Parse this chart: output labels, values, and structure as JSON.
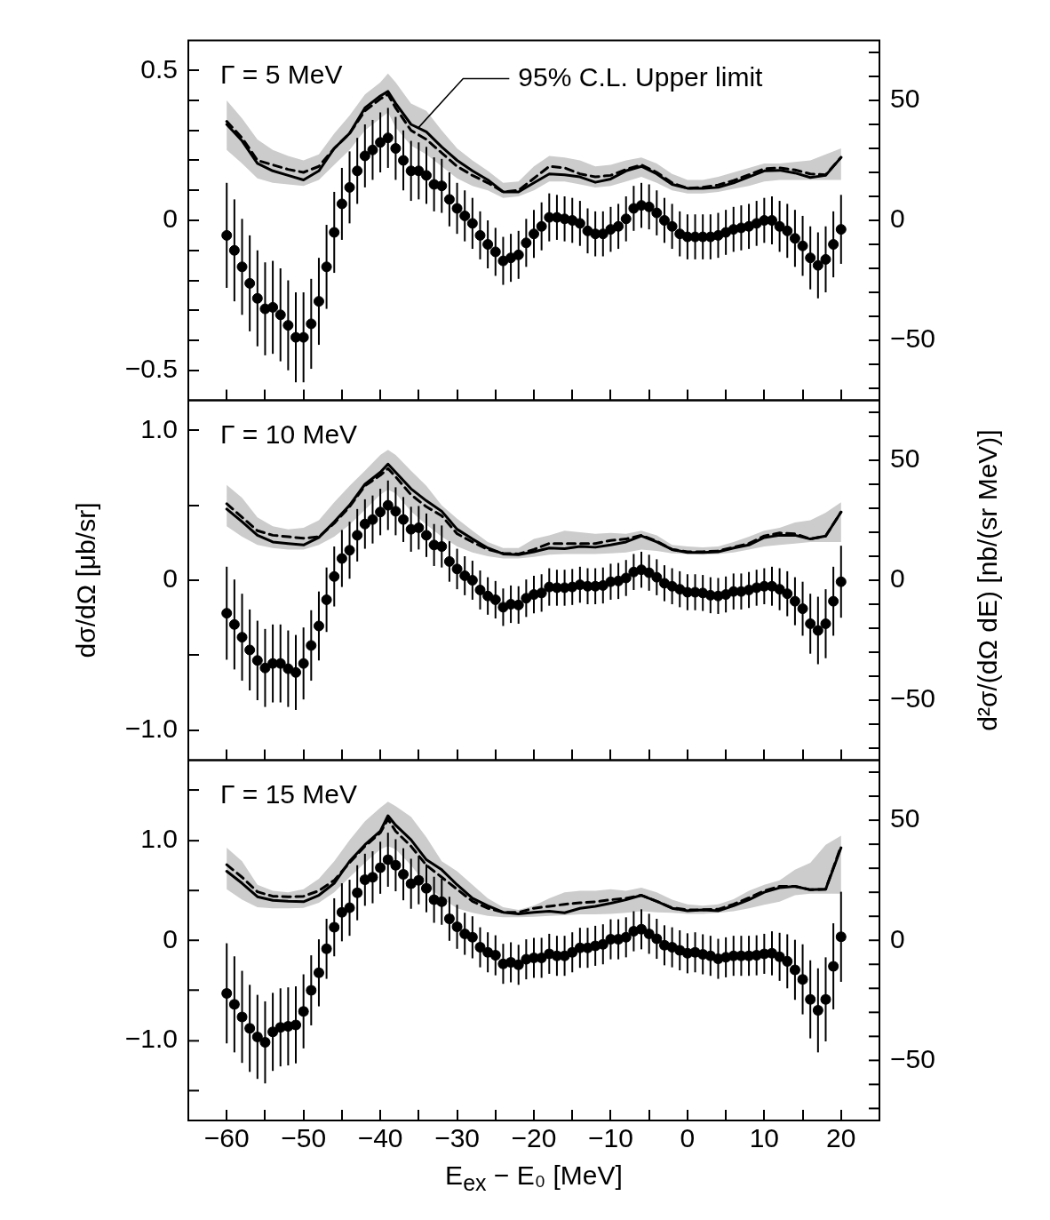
{
  "chart_data": [
    {
      "type": "scatter",
      "annotations": [
        "Γ = 5 MeV",
        {
          "text": "95% C.L. Upper limit",
          "x": -35,
          "y": 0.31
        }
      ],
      "x": [
        -60,
        -59,
        -58,
        -57,
        -56,
        -55,
        -54,
        -53,
        -52,
        -51,
        -50,
        -49,
        -48,
        -47,
        -46,
        -45,
        -44,
        -43,
        -42,
        -41,
        -40,
        -39,
        -38,
        -37,
        -36,
        -35,
        -34,
        -33,
        -32,
        -31,
        -30,
        -29,
        -28,
        -27,
        -26,
        -25,
        -24,
        -23,
        -22,
        -21,
        -20,
        -19,
        -18,
        -17,
        -16,
        -15,
        -14,
        -13,
        -12,
        -11,
        -10,
        -9,
        -8,
        -7,
        -6,
        -5,
        -4,
        -3,
        -2,
        -1,
        0,
        1,
        2,
        3,
        4,
        5,
        6,
        7,
        8,
        9,
        10,
        11,
        12,
        13,
        14,
        15,
        16,
        17,
        18,
        19,
        20
      ],
      "xlim": [
        -65,
        25
      ],
      "xticks": [
        {
          "value": -60,
          "label": null
        },
        {
          "value": -55,
          "label": null
        },
        {
          "value": -50,
          "label": null
        },
        {
          "value": -45,
          "label": null
        },
        {
          "value": -40,
          "label": null
        },
        {
          "value": -35,
          "label": null
        },
        {
          "value": -30,
          "label": null
        },
        {
          "value": -25,
          "label": null
        },
        {
          "value": -20,
          "label": null
        },
        {
          "value": -15,
          "label": null
        },
        {
          "value": -10,
          "label": null
        },
        {
          "value": -5,
          "label": null
        },
        {
          "value": 0,
          "label": null
        },
        {
          "value": 5,
          "label": null
        },
        {
          "value": 10,
          "label": null
        },
        {
          "value": 15,
          "label": null
        },
        {
          "value": 20,
          "label": null
        }
      ],
      "ylim": [
        -0.6,
        0.6
      ],
      "yticks": [
        {
          "value": -0.5,
          "label": "−0.5"
        },
        {
          "value": -0.4,
          "label": null
        },
        {
          "value": -0.3,
          "label": null
        },
        {
          "value": -0.2,
          "label": null
        },
        {
          "value": -0.1,
          "label": null
        },
        {
          "value": 0,
          "label": "0"
        },
        {
          "value": 0.1,
          "label": null
        },
        {
          "value": 0.2,
          "label": null
        },
        {
          "value": 0.3,
          "label": null
        },
        {
          "value": 0.4,
          "label": null
        },
        {
          "value": 0.5,
          "label": "0.5"
        }
      ],
      "y2lim": [
        -75,
        75
      ],
      "y2ticks": [
        {
          "value": -70,
          "label": null
        },
        {
          "value": -60,
          "label": null
        },
        {
          "value": -50,
          "label": "−50"
        },
        {
          "value": -40,
          "label": null
        },
        {
          "value": -30,
          "label": null
        },
        {
          "value": -20,
          "label": null
        },
        {
          "value": -10,
          "label": null
        },
        {
          "value": 0,
          "label": "0"
        },
        {
          "value": 10,
          "label": null
        },
        {
          "value": 20,
          "label": null
        },
        {
          "value": 30,
          "label": null
        },
        {
          "value": 40,
          "label": null
        },
        {
          "value": 50,
          "label": "50"
        },
        {
          "value": 60,
          "label": null
        },
        {
          "value": 70,
          "label": null
        }
      ],
      "tick_labels": "y",
      "series": [
        {
          "type": "line",
          "color": "#000000",
          "line_style": "dashed",
          "marker": "none",
          "x": [
            -60,
            -58,
            -56,
            -54,
            -52,
            -50,
            -48,
            -46,
            -44,
            -42,
            -40,
            -39,
            -38,
            -36,
            -34,
            -32,
            -30,
            -28,
            -26,
            -24,
            -22,
            -20,
            -18,
            -16,
            -14,
            -12,
            -10,
            -8,
            -6,
            -4,
            -2,
            0,
            2,
            4,
            6,
            8,
            10,
            12,
            14,
            16,
            18,
            20
          ],
          "values": [
            0.33,
            0.275,
            0.2,
            0.185,
            0.17,
            0.16,
            0.18,
            0.24,
            0.29,
            0.365,
            0.405,
            0.42,
            0.375,
            0.3,
            0.27,
            0.225,
            0.18,
            0.15,
            0.125,
            0.095,
            0.1,
            0.14,
            0.18,
            0.175,
            0.155,
            0.145,
            0.15,
            0.17,
            0.185,
            0.16,
            0.125,
            0.107,
            0.11,
            0.118,
            0.133,
            0.152,
            0.172,
            0.175,
            0.168,
            0.155,
            0.152,
            0.21
          ],
          "upper": [
            0.4,
            0.34,
            0.27,
            0.235,
            0.215,
            0.2,
            0.22,
            0.29,
            0.35,
            0.42,
            0.46,
            0.49,
            0.46,
            0.39,
            0.365,
            0.3,
            0.24,
            0.2,
            0.165,
            0.125,
            0.13,
            0.18,
            0.215,
            0.21,
            0.2,
            0.18,
            0.185,
            0.2,
            0.21,
            0.19,
            0.155,
            0.135,
            0.135,
            0.145,
            0.16,
            0.175,
            0.19,
            0.19,
            0.195,
            0.2,
            0.22,
            0.24
          ],
          "lower": [
            0.235,
            0.19,
            0.14,
            0.125,
            0.12,
            0.115,
            0.135,
            0.185,
            0.235,
            0.3,
            0.34,
            0.36,
            0.31,
            0.25,
            0.22,
            0.18,
            0.14,
            0.115,
            0.1,
            0.075,
            0.08,
            0.1,
            0.13,
            0.13,
            0.12,
            0.11,
            0.115,
            0.13,
            0.145,
            0.125,
            0.1,
            0.09,
            0.09,
            0.095,
            0.105,
            0.115,
            0.13,
            0.135,
            0.135,
            0.135,
            0.135,
            0.135
          ]
        },
        {
          "type": "line",
          "color": "#000000",
          "line_style": "solid",
          "marker": "none",
          "x": [
            -60,
            -58,
            -56,
            -54,
            -52,
            -50,
            -48,
            -46,
            -44,
            -42,
            -40,
            -39,
            -38,
            -36,
            -34,
            -32,
            -30,
            -28,
            -26,
            -24,
            -22,
            -20,
            -18,
            -16,
            -14,
            -12,
            -10,
            -8,
            -6,
            -4,
            -2,
            0,
            2,
            4,
            6,
            8,
            10,
            12,
            14,
            16,
            18,
            20
          ],
          "values": [
            0.32,
            0.265,
            0.19,
            0.165,
            0.15,
            0.135,
            0.165,
            0.24,
            0.29,
            0.375,
            0.415,
            0.43,
            0.39,
            0.32,
            0.295,
            0.245,
            0.2,
            0.165,
            0.135,
            0.095,
            0.095,
            0.125,
            0.155,
            0.152,
            0.145,
            0.127,
            0.138,
            0.165,
            0.18,
            0.155,
            0.12,
            0.107,
            0.107,
            0.11,
            0.125,
            0.145,
            0.165,
            0.167,
            0.158,
            0.143,
            0.15,
            0.21
          ]
        },
        {
          "type": "scatter",
          "color": "#000000",
          "marker": "circle",
          "values": [
            -0.05,
            -0.1,
            -0.155,
            -0.21,
            -0.26,
            -0.295,
            -0.29,
            -0.315,
            -0.35,
            -0.39,
            -0.39,
            -0.345,
            -0.27,
            -0.155,
            -0.04,
            0.055,
            0.11,
            0.165,
            0.215,
            0.235,
            0.26,
            0.275,
            0.24,
            0.2,
            0.165,
            0.165,
            0.15,
            0.12,
            0.115,
            0.07,
            0.04,
            0.015,
            -0.01,
            -0.05,
            -0.08,
            -0.105,
            -0.135,
            -0.125,
            -0.115,
            -0.075,
            -0.045,
            -0.02,
            0.01,
            0.01,
            0.005,
            0,
            -0.01,
            -0.035,
            -0.045,
            -0.045,
            -0.03,
            -0.02,
            0.005,
            0.04,
            0.05,
            0.045,
            0.025,
            0,
            -0.02,
            -0.045,
            -0.055,
            -0.055,
            -0.055,
            -0.055,
            -0.05,
            -0.04,
            -0.03,
            -0.025,
            -0.02,
            -0.01,
            0,
            0,
            -0.02,
            -0.035,
            -0.06,
            -0.085,
            -0.125,
            -0.15,
            -0.13,
            -0.08,
            -0.03
          ],
          "errors": [
            0.175,
            0.17,
            0.16,
            0.16,
            0.16,
            0.155,
            0.155,
            0.155,
            0.15,
            0.15,
            0.15,
            0.15,
            0.145,
            0.14,
            0.135,
            0.12,
            0.12,
            0.11,
            0.105,
            0.1,
            0.1,
            0.1,
            0.105,
            0.1,
            0.1,
            0.095,
            0.095,
            0.09,
            0.09,
            0.09,
            0.085,
            0.085,
            0.085,
            0.08,
            0.08,
            0.08,
            0.08,
            0.08,
            0.08,
            0.08,
            0.08,
            0.08,
            0.08,
            0.075,
            0.075,
            0.075,
            0.075,
            0.075,
            0.075,
            0.075,
            0.075,
            0.075,
            0.075,
            0.075,
            0.075,
            0.075,
            0.075,
            0.075,
            0.075,
            0.075,
            0.075,
            0.075,
            0.075,
            0.075,
            0.075,
            0.075,
            0.075,
            0.075,
            0.075,
            0.075,
            0.075,
            0.08,
            0.085,
            0.09,
            0.095,
            0.1,
            0.105,
            0.11,
            0.11,
            0.11,
            0.115
          ]
        }
      ]
    },
    {
      "type": "scatter",
      "annotations": [
        "Γ = 10 MeV"
      ],
      "ylabel": "dσ/dΩ [μb/sr]",
      "y2label": "d²σ/(dΩ dE) [nb/(sr MeV)]",
      "x": [
        -60,
        -59,
        -58,
        -57,
        -56,
        -55,
        -54,
        -53,
        -52,
        -51,
        -50,
        -49,
        -48,
        -47,
        -46,
        -45,
        -44,
        -43,
        -42,
        -41,
        -40,
        -39,
        -38,
        -37,
        -36,
        -35,
        -34,
        -33,
        -32,
        -31,
        -30,
        -29,
        -28,
        -27,
        -26,
        -25,
        -24,
        -23,
        -22,
        -21,
        -20,
        -19,
        -18,
        -17,
        -16,
        -15,
        -14,
        -13,
        -12,
        -11,
        -10,
        -9,
        -8,
        -7,
        -6,
        -5,
        -4,
        -3,
        -2,
        -1,
        0,
        1,
        2,
        3,
        4,
        5,
        6,
        7,
        8,
        9,
        10,
        11,
        12,
        13,
        14,
        15,
        16,
        17,
        18,
        19,
        20
      ],
      "xlim": [
        -65,
        25
      ],
      "xticks": [
        {
          "value": -60,
          "label": null
        },
        {
          "value": -55,
          "label": null
        },
        {
          "value": -50,
          "label": null
        },
        {
          "value": -45,
          "label": null
        },
        {
          "value": -40,
          "label": null
        },
        {
          "value": -35,
          "label": null
        },
        {
          "value": -30,
          "label": null
        },
        {
          "value": -25,
          "label": null
        },
        {
          "value": -20,
          "label": null
        },
        {
          "value": -15,
          "label": null
        },
        {
          "value": -10,
          "label": null
        },
        {
          "value": -5,
          "label": null
        },
        {
          "value": 0,
          "label": null
        },
        {
          "value": 5,
          "label": null
        },
        {
          "value": 10,
          "label": null
        },
        {
          "value": 15,
          "label": null
        },
        {
          "value": 20,
          "label": null
        }
      ],
      "ylim": [
        -1.2,
        1.2
      ],
      "yticks": [
        {
          "value": -1,
          "label": "−1.0"
        },
        {
          "value": -0.5,
          "label": null
        },
        {
          "value": 0,
          "label": "0"
        },
        {
          "value": 0.5,
          "label": null
        },
        {
          "value": 1,
          "label": "1.0"
        }
      ],
      "y2lim": [
        -75,
        75
      ],
      "y2ticks": [
        {
          "value": -70,
          "label": null
        },
        {
          "value": -60,
          "label": null
        },
        {
          "value": -50,
          "label": "−50"
        },
        {
          "value": -40,
          "label": null
        },
        {
          "value": -30,
          "label": null
        },
        {
          "value": -20,
          "label": null
        },
        {
          "value": -10,
          "label": null
        },
        {
          "value": 0,
          "label": "0"
        },
        {
          "value": 10,
          "label": null
        },
        {
          "value": 20,
          "label": null
        },
        {
          "value": 30,
          "label": null
        },
        {
          "value": 40,
          "label": null
        },
        {
          "value": 50,
          "label": "50"
        },
        {
          "value": 60,
          "label": null
        },
        {
          "value": 70,
          "label": null
        }
      ],
      "tick_labels": "y",
      "series": [
        {
          "type": "line",
          "color": "#000000",
          "line_style": "dashed",
          "marker": "none",
          "x": [
            -60,
            -58,
            -56,
            -54,
            -52,
            -50,
            -48,
            -46,
            -44,
            -42,
            -40,
            -39,
            -38,
            -36,
            -34,
            -32,
            -30,
            -28,
            -26,
            -24,
            -22,
            -20,
            -18,
            -16,
            -14,
            -12,
            -10,
            -8,
            -6,
            -4,
            -2,
            0,
            2,
            4,
            6,
            8,
            10,
            12,
            14,
            16,
            18,
            20
          ],
          "values": [
            0.51,
            0.42,
            0.33,
            0.3,
            0.29,
            0.28,
            0.29,
            0.38,
            0.49,
            0.63,
            0.7,
            0.745,
            0.69,
            0.57,
            0.49,
            0.43,
            0.31,
            0.255,
            0.205,
            0.18,
            0.175,
            0.205,
            0.245,
            0.245,
            0.245,
            0.245,
            0.265,
            0.275,
            0.3,
            0.26,
            0.205,
            0.19,
            0.19,
            0.195,
            0.22,
            0.245,
            0.295,
            0.315,
            0.31,
            0.275,
            0.295,
            0.455
          ],
          "upper": [
            0.635,
            0.55,
            0.42,
            0.36,
            0.34,
            0.35,
            0.4,
            0.52,
            0.63,
            0.73,
            0.835,
            0.87,
            0.835,
            0.73,
            0.63,
            0.5,
            0.41,
            0.33,
            0.255,
            0.215,
            0.215,
            0.275,
            0.3,
            0.33,
            0.32,
            0.31,
            0.315,
            0.31,
            0.33,
            0.3,
            0.235,
            0.225,
            0.22,
            0.225,
            0.255,
            0.29,
            0.33,
            0.35,
            0.385,
            0.4,
            0.45,
            0.52
          ],
          "lower": [
            0.36,
            0.29,
            0.235,
            0.215,
            0.205,
            0.205,
            0.235,
            0.29,
            0.37,
            0.47,
            0.57,
            0.605,
            0.58,
            0.46,
            0.37,
            0.29,
            0.225,
            0.185,
            0.16,
            0.145,
            0.145,
            0.155,
            0.17,
            0.175,
            0.175,
            0.175,
            0.18,
            0.185,
            0.205,
            0.195,
            0.18,
            0.175,
            0.17,
            0.175,
            0.185,
            0.205,
            0.225,
            0.235,
            0.245,
            0.255,
            0.255,
            0.255
          ]
        },
        {
          "type": "line",
          "color": "#000000",
          "line_style": "solid",
          "marker": "none",
          "x": [
            -60,
            -58,
            -56,
            -54,
            -52,
            -50,
            -48,
            -46,
            -44,
            -42,
            -40,
            -39,
            -38,
            -36,
            -34,
            -32,
            -30,
            -28,
            -26,
            -24,
            -22,
            -20,
            -18,
            -16,
            -14,
            -12,
            -10,
            -8,
            -6,
            -4,
            -2,
            0,
            2,
            4,
            6,
            8,
            10,
            12,
            14,
            16,
            18,
            20
          ],
          "values": [
            0.475,
            0.39,
            0.3,
            0.255,
            0.245,
            0.235,
            0.285,
            0.39,
            0.5,
            0.64,
            0.72,
            0.775,
            0.72,
            0.61,
            0.53,
            0.46,
            0.34,
            0.275,
            0.215,
            0.175,
            0.17,
            0.19,
            0.215,
            0.21,
            0.225,
            0.22,
            0.235,
            0.255,
            0.295,
            0.255,
            0.205,
            0.185,
            0.185,
            0.19,
            0.215,
            0.235,
            0.285,
            0.3,
            0.3,
            0.275,
            0.295,
            0.455
          ]
        },
        {
          "type": "scatter",
          "color": "#000000",
          "marker": "circle",
          "values": [
            -0.22,
            -0.295,
            -0.38,
            -0.465,
            -0.535,
            -0.585,
            -0.555,
            -0.555,
            -0.59,
            -0.615,
            -0.555,
            -0.435,
            -0.305,
            -0.13,
            0.025,
            0.145,
            0.2,
            0.3,
            0.375,
            0.405,
            0.455,
            0.5,
            0.46,
            0.405,
            0.34,
            0.35,
            0.3,
            0.235,
            0.225,
            0.125,
            0.075,
            0.03,
            0,
            -0.065,
            -0.105,
            -0.13,
            -0.18,
            -0.16,
            -0.165,
            -0.12,
            -0.095,
            -0.085,
            -0.045,
            -0.05,
            -0.05,
            -0.045,
            -0.03,
            -0.04,
            -0.04,
            -0.035,
            -0.01,
            -0.005,
            0.015,
            0.055,
            0.07,
            0.05,
            0.02,
            -0.02,
            -0.04,
            -0.06,
            -0.08,
            -0.08,
            -0.085,
            -0.1,
            -0.105,
            -0.095,
            -0.075,
            -0.075,
            -0.065,
            -0.05,
            -0.04,
            -0.04,
            -0.06,
            -0.09,
            -0.14,
            -0.19,
            -0.29,
            -0.335,
            -0.29,
            -0.14,
            -0.01
          ],
          "errors": [
            0.31,
            0.3,
            0.29,
            0.27,
            0.265,
            0.26,
            0.26,
            0.26,
            0.255,
            0.25,
            0.24,
            0.235,
            0.23,
            0.215,
            0.2,
            0.19,
            0.19,
            0.175,
            0.165,
            0.16,
            0.155,
            0.165,
            0.16,
            0.15,
            0.15,
            0.145,
            0.145,
            0.14,
            0.14,
            0.135,
            0.135,
            0.13,
            0.13,
            0.13,
            0.125,
            0.125,
            0.125,
            0.125,
            0.125,
            0.125,
            0.125,
            0.125,
            0.125,
            0.12,
            0.12,
            0.12,
            0.12,
            0.12,
            0.12,
            0.12,
            0.12,
            0.12,
            0.12,
            0.12,
            0.12,
            0.12,
            0.12,
            0.12,
            0.12,
            0.12,
            0.12,
            0.12,
            0.12,
            0.12,
            0.12,
            0.12,
            0.12,
            0.12,
            0.12,
            0.12,
            0.12,
            0.13,
            0.14,
            0.15,
            0.16,
            0.18,
            0.2,
            0.225,
            0.23,
            0.23,
            0.24
          ]
        }
      ]
    },
    {
      "type": "scatter",
      "annotations": [
        "Γ = 15 MeV"
      ],
      "xlabel": "E$_{ex}$ − E₀ [MeV]",
      "x": [
        -60,
        -59,
        -58,
        -57,
        -56,
        -55,
        -54,
        -53,
        -52,
        -51,
        -50,
        -49,
        -48,
        -47,
        -46,
        -45,
        -44,
        -43,
        -42,
        -41,
        -40,
        -39,
        -38,
        -37,
        -36,
        -35,
        -34,
        -33,
        -32,
        -31,
        -30,
        -29,
        -28,
        -27,
        -26,
        -25,
        -24,
        -23,
        -22,
        -21,
        -20,
        -19,
        -18,
        -17,
        -16,
        -15,
        -14,
        -13,
        -12,
        -11,
        -10,
        -9,
        -8,
        -7,
        -6,
        -5,
        -4,
        -3,
        -2,
        -1,
        0,
        1,
        2,
        3,
        4,
        5,
        6,
        7,
        8,
        9,
        10,
        11,
        12,
        13,
        14,
        15,
        16,
        17,
        18,
        19,
        20
      ],
      "xlim": [
        -65,
        25
      ],
      "xticks": [
        {
          "value": -60,
          "label": "−60"
        },
        {
          "value": -55,
          "label": null
        },
        {
          "value": -50,
          "label": "−50"
        },
        {
          "value": -45,
          "label": null
        },
        {
          "value": -40,
          "label": "−40"
        },
        {
          "value": -35,
          "label": null
        },
        {
          "value": -30,
          "label": "−30"
        },
        {
          "value": -25,
          "label": null
        },
        {
          "value": -20,
          "label": "−20"
        },
        {
          "value": -15,
          "label": null
        },
        {
          "value": -10,
          "label": "−10"
        },
        {
          "value": -5,
          "label": null
        },
        0,
        {
          "value": 5,
          "label": null
        },
        10,
        {
          "value": 15,
          "label": null
        },
        20
      ],
      "ylim": [
        -1.8,
        1.8
      ],
      "yticks": [
        {
          "value": -1.5,
          "label": null
        },
        {
          "value": -1,
          "label": "−1.0"
        },
        {
          "value": -0.5,
          "label": null
        },
        {
          "value": 0,
          "label": "0"
        },
        {
          "value": 0.5,
          "label": null
        },
        {
          "value": 1,
          "label": "1.0"
        },
        {
          "value": 1.5,
          "label": null
        }
      ],
      "y2lim": [
        -75,
        75
      ],
      "y2ticks": [
        {
          "value": -70,
          "label": null
        },
        {
          "value": -60,
          "label": null
        },
        {
          "value": -50,
          "label": "−50"
        },
        {
          "value": -40,
          "label": null
        },
        {
          "value": -30,
          "label": null
        },
        {
          "value": -20,
          "label": null
        },
        {
          "value": -10,
          "label": null
        },
        {
          "value": 0,
          "label": "0"
        },
        {
          "value": 10,
          "label": null
        },
        {
          "value": 20,
          "label": null
        },
        {
          "value": 30,
          "label": null
        },
        {
          "value": 40,
          "label": null
        },
        {
          "value": 50,
          "label": "50"
        },
        {
          "value": 60,
          "label": null
        },
        {
          "value": 70,
          "label": null
        }
      ],
      "series": [
        {
          "type": "line",
          "color": "#000000",
          "line_style": "dashed",
          "marker": "none",
          "x": [
            -60,
            -58,
            -56,
            -54,
            -52,
            -50,
            -48,
            -46,
            -44,
            -42,
            -40,
            -39,
            -38,
            -36,
            -34,
            -32,
            -30,
            -28,
            -26,
            -24,
            -22,
            -20,
            -18,
            -16,
            -14,
            -12,
            -10,
            -8,
            -6,
            -4,
            -2,
            0,
            2,
            4,
            6,
            8,
            10,
            12,
            14,
            16,
            18,
            20
          ],
          "values": [
            0.755,
            0.63,
            0.485,
            0.44,
            0.435,
            0.44,
            0.495,
            0.6,
            0.775,
            0.94,
            1.075,
            1.21,
            1.09,
            0.94,
            0.75,
            0.63,
            0.51,
            0.39,
            0.32,
            0.28,
            0.28,
            0.32,
            0.34,
            0.36,
            0.375,
            0.385,
            0.405,
            0.42,
            0.45,
            0.39,
            0.325,
            0.305,
            0.305,
            0.31,
            0.36,
            0.425,
            0.495,
            0.54,
            0.54,
            0.505,
            0.51,
            0.94
          ],
          "upper": [
            0.925,
            0.79,
            0.555,
            0.495,
            0.48,
            0.51,
            0.615,
            0.79,
            1.0,
            1.19,
            1.325,
            1.385,
            1.34,
            1.235,
            1.03,
            0.79,
            0.69,
            0.555,
            0.42,
            0.33,
            0.305,
            0.345,
            0.42,
            0.48,
            0.495,
            0.495,
            0.51,
            0.495,
            0.525,
            0.48,
            0.405,
            0.36,
            0.345,
            0.36,
            0.41,
            0.495,
            0.555,
            0.6,
            0.705,
            0.775,
            0.955,
            1.045
          ],
          "lower": [
            0.51,
            0.405,
            0.33,
            0.32,
            0.32,
            0.325,
            0.375,
            0.48,
            0.63,
            0.775,
            0.91,
            0.94,
            0.91,
            0.75,
            0.555,
            0.42,
            0.32,
            0.275,
            0.245,
            0.23,
            0.23,
            0.235,
            0.245,
            0.25,
            0.26,
            0.26,
            0.265,
            0.275,
            0.29,
            0.28,
            0.275,
            0.265,
            0.265,
            0.275,
            0.29,
            0.32,
            0.355,
            0.385,
            0.45,
            0.465,
            0.465,
            0.465
          ]
        },
        {
          "type": "line",
          "color": "#000000",
          "line_style": "solid",
          "marker": "none",
          "x": [
            -60,
            -58,
            -56,
            -54,
            -52,
            -50,
            -48,
            -46,
            -44,
            -42,
            -40,
            -39,
            -38,
            -36,
            -34,
            -32,
            -30,
            -28,
            -26,
            -24,
            -22,
            -20,
            -18,
            -16,
            -14,
            -12,
            -10,
            -8,
            -6,
            -4,
            -2,
            0,
            2,
            4,
            6,
            8,
            10,
            12,
            14,
            16,
            18,
            20
          ],
          "values": [
            0.69,
            0.57,
            0.435,
            0.4,
            0.39,
            0.385,
            0.45,
            0.57,
            0.79,
            0.955,
            1.09,
            1.245,
            1.15,
            1.005,
            0.805,
            0.705,
            0.555,
            0.42,
            0.345,
            0.28,
            0.265,
            0.28,
            0.29,
            0.275,
            0.32,
            0.34,
            0.37,
            0.405,
            0.45,
            0.39,
            0.32,
            0.295,
            0.305,
            0.295,
            0.345,
            0.405,
            0.48,
            0.525,
            0.54,
            0.505,
            0.51,
            0.925
          ]
        },
        {
          "type": "scatter",
          "color": "#000000",
          "marker": "circle",
          "values": [
            -0.53,
            -0.64,
            -0.765,
            -0.88,
            -0.965,
            -1.02,
            -0.915,
            -0.87,
            -0.86,
            -0.845,
            -0.71,
            -0.5,
            -0.325,
            -0.085,
            0.13,
            0.28,
            0.325,
            0.475,
            0.605,
            0.63,
            0.725,
            0.805,
            0.75,
            0.66,
            0.565,
            0.6,
            0.52,
            0.405,
            0.385,
            0.215,
            0.135,
            0.065,
            0.03,
            -0.07,
            -0.12,
            -0.15,
            -0.235,
            -0.22,
            -0.245,
            -0.19,
            -0.175,
            -0.175,
            -0.135,
            -0.155,
            -0.155,
            -0.12,
            -0.075,
            -0.075,
            -0.055,
            -0.04,
            0.01,
            0.01,
            0.03,
            0.09,
            0.11,
            0.065,
            0.015,
            -0.05,
            -0.07,
            -0.1,
            -0.13,
            -0.12,
            -0.14,
            -0.155,
            -0.185,
            -0.17,
            -0.155,
            -0.155,
            -0.155,
            -0.15,
            -0.135,
            -0.13,
            -0.165,
            -0.21,
            -0.295,
            -0.39,
            -0.59,
            -0.7,
            -0.59,
            -0.26,
            0.035
          ],
          "errors": [
            0.5,
            0.48,
            0.46,
            0.435,
            0.42,
            0.41,
            0.39,
            0.39,
            0.39,
            0.385,
            0.37,
            0.35,
            0.335,
            0.3,
            0.29,
            0.29,
            0.28,
            0.275,
            0.26,
            0.26,
            0.26,
            0.27,
            0.26,
            0.26,
            0.25,
            0.24,
            0.24,
            0.23,
            0.23,
            0.22,
            0.22,
            0.21,
            0.21,
            0.2,
            0.2,
            0.2,
            0.2,
            0.2,
            0.2,
            0.2,
            0.2,
            0.2,
            0.2,
            0.2,
            0.2,
            0.2,
            0.2,
            0.2,
            0.2,
            0.2,
            0.2,
            0.2,
            0.2,
            0.2,
            0.2,
            0.2,
            0.2,
            0.2,
            0.2,
            0.2,
            0.2,
            0.2,
            0.2,
            0.2,
            0.2,
            0.2,
            0.2,
            0.2,
            0.2,
            0.2,
            0.2,
            0.22,
            0.24,
            0.27,
            0.3,
            0.35,
            0.39,
            0.42,
            0.42,
            0.43,
            0.45
          ]
        }
      ]
    }
  ]
}
